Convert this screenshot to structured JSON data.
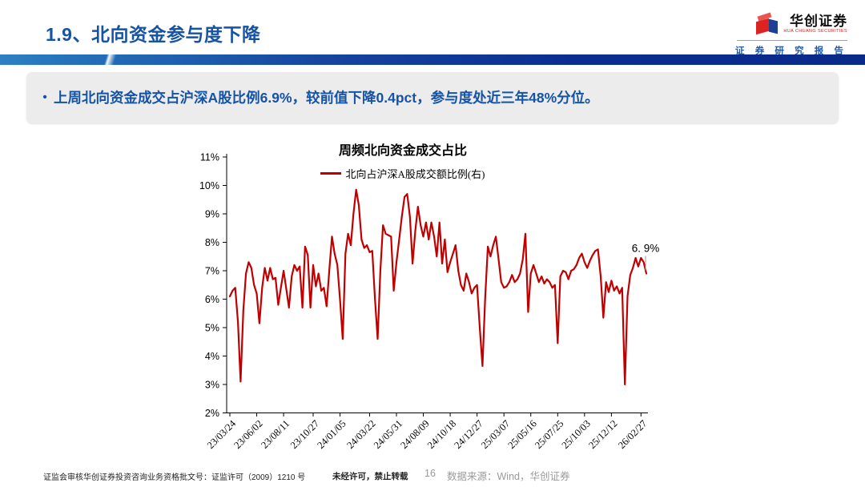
{
  "header": {
    "title": "1.9、北向资金参与度下降",
    "logo": {
      "name": "华创证券",
      "subtitle": "HUA CHUANG SECURITIES",
      "tagline": "证 券 研 究 报 告"
    }
  },
  "highlight": {
    "bullet_marker": "•",
    "bullet": "上周北向资金成交占沪深A股比例6.9%，较前值下降0.4pct，参与度处近三年48%分位。"
  },
  "chart_data": {
    "type": "line",
    "title": "周频北向资金成交占比",
    "frequency": "weekly",
    "grid": false,
    "legend_position": "top",
    "ylim": [
      2,
      11
    ],
    "y_unit": "%",
    "y_ticks": [
      "11%",
      "10%",
      "9%",
      "8%",
      "7%",
      "6%",
      "5%",
      "4%",
      "3%",
      "2%"
    ],
    "x_tick_labels": [
      "23/03/24",
      "23/06/02",
      "23/08/11",
      "23/10/27",
      "24/01/05",
      "24/03/22",
      "24/05/31",
      "24/08/09",
      "24/10/18",
      "24/12/27",
      "25/03/07",
      "25/05/16",
      "25/07/25",
      "25/10/03",
      "25/12/12",
      "26/02/27"
    ],
    "x_tick_indices": [
      0,
      10,
      20,
      31,
      41,
      52,
      62,
      72,
      82,
      92,
      102,
      112,
      122,
      132,
      142,
      153
    ],
    "annotation": {
      "text": "6. 9%",
      "value": 6.9
    },
    "series": [
      {
        "name": "北向占沪深A股成交额比例(右)",
        "color": "#C00000",
        "values": [
          6.1,
          6.3,
          6.4,
          5.2,
          3.1,
          5.6,
          6.9,
          7.3,
          7.1,
          6.5,
          6.2,
          5.15,
          6.4,
          7.1,
          6.65,
          7.1,
          6.7,
          6.75,
          5.8,
          6.4,
          7.0,
          6.35,
          5.7,
          6.8,
          7.2,
          7.0,
          7.15,
          5.7,
          7.85,
          7.55,
          5.7,
          7.2,
          6.45,
          6.9,
          6.3,
          6.4,
          5.75,
          7.0,
          8.2,
          7.6,
          7.2,
          6.0,
          4.6,
          7.6,
          8.3,
          7.9,
          9.0,
          9.85,
          9.3,
          8.1,
          7.8,
          7.9,
          7.65,
          7.7,
          6.0,
          4.6,
          7.0,
          8.6,
          8.3,
          8.25,
          8.2,
          6.3,
          7.3,
          8.1,
          8.9,
          9.6,
          9.7,
          8.9,
          7.25,
          8.4,
          9.25,
          8.6,
          8.2,
          8.7,
          8.1,
          8.7,
          8.2,
          7.5,
          8.7,
          7.25,
          8.1,
          6.95,
          7.3,
          7.6,
          7.9,
          7.0,
          6.5,
          6.3,
          6.9,
          6.6,
          6.2,
          6.4,
          6.5,
          5.0,
          3.65,
          6.0,
          7.85,
          7.5,
          7.9,
          8.2,
          7.4,
          6.6,
          6.4,
          6.45,
          6.6,
          6.85,
          6.6,
          6.7,
          6.9,
          7.4,
          8.3,
          5.55,
          6.9,
          7.2,
          6.9,
          6.6,
          6.8,
          6.55,
          6.7,
          6.6,
          6.4,
          6.5,
          4.45,
          6.8,
          7.0,
          6.95,
          6.7,
          7.0,
          7.05,
          7.2,
          7.45,
          7.6,
          7.3,
          7.1,
          7.35,
          7.55,
          7.7,
          7.75,
          6.8,
          5.35,
          6.6,
          6.25,
          6.65,
          6.3,
          6.45,
          6.2,
          6.4,
          3.0,
          6.1,
          6.85,
          7.1,
          7.45,
          7.15,
          7.45,
          7.3,
          6.9
        ]
      }
    ]
  },
  "footer": {
    "license": "证监会审核华创证券投资咨询业务资格批文号：证监许可（2009）1210 号",
    "notice": "未经许可，禁止转载",
    "page": "16",
    "source": "数据来源：Wind，华创证券"
  },
  "colors": {
    "accent_blue": "#1553A5",
    "bar_navy": "#0B2D91",
    "bar_light_blue": "#2E80C3",
    "box_gray": "#ECECEC",
    "line_red": "#C00000"
  }
}
